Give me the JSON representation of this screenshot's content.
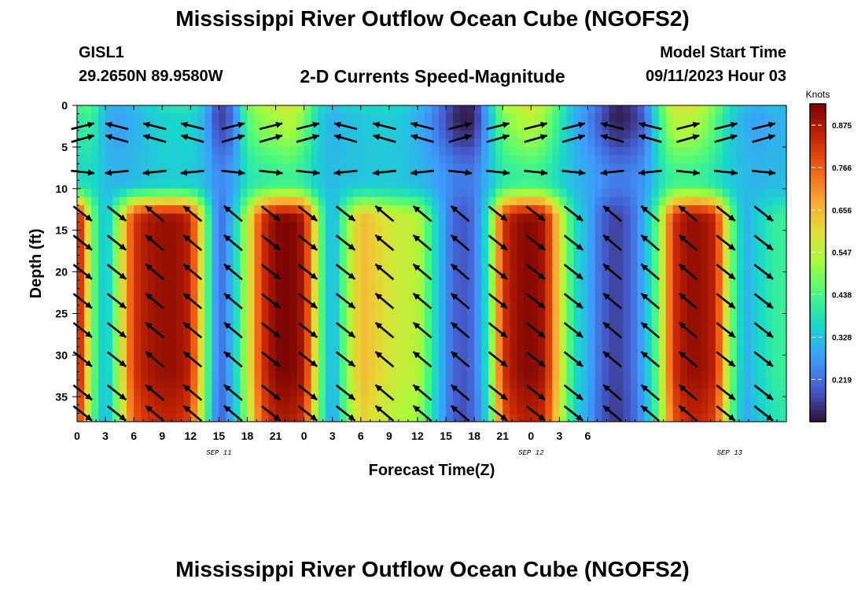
{
  "header": {
    "title": "Mississippi River Outflow Ocean Cube (NGOFS2)",
    "station": "GISL1",
    "coords": "29.2650N  89.9580W",
    "subtitle": "2-D Currents Speed-Magnitude",
    "start_label": "Model Start Time",
    "start_value": "09/11/2023 Hour 03"
  },
  "footer": {
    "title": "Mississippi River Outflow Ocean Cube (NGOFS2)"
  },
  "chart_data": {
    "type": "heatmap",
    "title": "2-D Currents Speed-Magnitude",
    "xlabel": "Forecast Time(Z)",
    "ylabel": "Depth (ft)",
    "x_range_hours": [
      0,
      75
    ],
    "y_range_ft": [
      0,
      38
    ],
    "y_inverted": true,
    "x_ticks": [
      "0",
      "3",
      "6",
      "9",
      "12",
      "15",
      "18",
      "21",
      "0",
      "3",
      "6",
      "9",
      "12",
      "15",
      "18",
      "21",
      "0",
      "3",
      "6"
    ],
    "y_ticks": [
      0,
      5,
      10,
      15,
      20,
      25,
      30,
      35
    ],
    "date_labels": [
      {
        "label": "SEP 11",
        "hour": 15
      },
      {
        "label": "SEP 12",
        "hour": 48
      },
      {
        "label": "SEP 13",
        "hour": 69
      }
    ],
    "colorbar": {
      "unit": "Knots",
      "ticks": [
        0.875,
        0.766,
        0.656,
        0.547,
        0.438,
        0.328,
        0.219
      ],
      "range": [
        0.11,
        0.93
      ]
    },
    "columns": [
      {
        "hour": 0,
        "deep": 0.92,
        "surf": 0.4
      },
      {
        "hour": 1.5,
        "deep": 0.5,
        "surf": 0.42
      },
      {
        "hour": 3,
        "deep": 0.3,
        "surf": 0.3
      },
      {
        "hour": 4.5,
        "deep": 0.55,
        "surf": 0.28
      },
      {
        "hour": 6,
        "deep": 0.82,
        "surf": 0.3
      },
      {
        "hour": 7.5,
        "deep": 0.88,
        "surf": 0.33
      },
      {
        "hour": 9,
        "deep": 0.9,
        "surf": 0.35
      },
      {
        "hour": 10.5,
        "deep": 0.9,
        "surf": 0.36
      },
      {
        "hour": 12,
        "deep": 0.85,
        "surf": 0.36
      },
      {
        "hour": 13.5,
        "deep": 0.5,
        "surf": 0.3
      },
      {
        "hour": 15,
        "deep": 0.2,
        "surf": 0.15
      },
      {
        "hour": 16.5,
        "deep": 0.32,
        "surf": 0.22
      },
      {
        "hour": 18,
        "deep": 0.55,
        "surf": 0.45
      },
      {
        "hour": 19.5,
        "deep": 0.82,
        "surf": 0.5
      },
      {
        "hour": 21,
        "deep": 0.92,
        "surf": 0.52
      },
      {
        "hour": 22.5,
        "deep": 0.93,
        "surf": 0.55
      },
      {
        "hour": 24,
        "deep": 0.88,
        "surf": 0.48
      },
      {
        "hour": 25.5,
        "deep": 0.5,
        "surf": 0.35
      },
      {
        "hour": 27,
        "deep": 0.28,
        "surf": 0.3
      },
      {
        "hour": 28.5,
        "deep": 0.5,
        "surf": 0.32
      },
      {
        "hour": 30,
        "deep": 0.66,
        "surf": 0.33
      },
      {
        "hour": 31.5,
        "deep": 0.62,
        "surf": 0.34
      },
      {
        "hour": 33,
        "deep": 0.58,
        "surf": 0.34
      },
      {
        "hour": 34.5,
        "deep": 0.56,
        "surf": 0.33
      },
      {
        "hour": 36,
        "deep": 0.55,
        "surf": 0.3
      },
      {
        "hour": 37.5,
        "deep": 0.4,
        "surf": 0.25
      },
      {
        "hour": 39,
        "deep": 0.26,
        "surf": 0.18
      },
      {
        "hour": 40.5,
        "deep": 0.18,
        "surf": 0.12
      },
      {
        "hour": 42,
        "deep": 0.22,
        "surf": 0.13
      },
      {
        "hour": 43.5,
        "deep": 0.4,
        "surf": 0.3
      },
      {
        "hour": 45,
        "deep": 0.82,
        "surf": 0.48
      },
      {
        "hour": 46.5,
        "deep": 0.9,
        "surf": 0.52
      },
      {
        "hour": 48,
        "deep": 0.92,
        "surf": 0.55
      },
      {
        "hour": 49.5,
        "deep": 0.88,
        "surf": 0.5
      },
      {
        "hour": 51,
        "deep": 0.6,
        "surf": 0.4
      },
      {
        "hour": 52.5,
        "deep": 0.38,
        "surf": 0.3
      },
      {
        "hour": 54,
        "deep": 0.3,
        "surf": 0.25
      },
      {
        "hour": 55.5,
        "deep": 0.2,
        "surf": 0.18
      },
      {
        "hour": 57,
        "deep": 0.16,
        "surf": 0.12
      },
      {
        "hour": 58.5,
        "deep": 0.2,
        "surf": 0.14
      },
      {
        "hour": 60,
        "deep": 0.3,
        "surf": 0.2
      },
      {
        "hour": 61.5,
        "deep": 0.48,
        "surf": 0.4
      },
      {
        "hour": 63,
        "deep": 0.82,
        "surf": 0.55
      },
      {
        "hour": 64.5,
        "deep": 0.9,
        "surf": 0.55
      },
      {
        "hour": 66,
        "deep": 0.9,
        "surf": 0.52
      },
      {
        "hour": 67.5,
        "deep": 0.85,
        "surf": 0.45
      },
      {
        "hour": 69,
        "deep": 0.5,
        "surf": 0.35
      },
      {
        "hour": 70.5,
        "deep": 0.3,
        "surf": 0.3
      },
      {
        "hour": 72,
        "deep": 0.35,
        "surf": 0.28
      },
      {
        "hour": 73.5,
        "deep": 0.4,
        "surf": 0.3
      },
      {
        "hour": 75,
        "deep": 0.42,
        "surf": 0.3
      }
    ],
    "vector_columns": [
      {
        "hour": 0.6,
        "deep": "down",
        "surf": "right"
      },
      {
        "hour": 4.2,
        "deep": "down",
        "surf": "left"
      },
      {
        "hour": 8.2,
        "deep": "up",
        "surf": "left"
      },
      {
        "hour": 12.2,
        "deep": "up",
        "surf": "left"
      },
      {
        "hour": 16.5,
        "deep": "up",
        "surf": "right"
      },
      {
        "hour": 20.5,
        "deep": "down",
        "surf": "right"
      },
      {
        "hour": 24.4,
        "deep": "down",
        "surf": "right"
      },
      {
        "hour": 28.4,
        "deep": "down",
        "surf": "left"
      },
      {
        "hour": 32.5,
        "deep": "up",
        "surf": "left"
      },
      {
        "hour": 36.5,
        "deep": "up",
        "surf": "left"
      },
      {
        "hour": 40.5,
        "deep": "up",
        "surf": "right"
      },
      {
        "hour": 44.5,
        "deep": "down",
        "surf": "right"
      },
      {
        "hour": 48.5,
        "deep": "down",
        "surf": "right"
      },
      {
        "hour": 52.5,
        "deep": "down",
        "surf": "right"
      },
      {
        "hour": 56.6,
        "deep": "up",
        "surf": "left"
      },
      {
        "hour": 60.6,
        "deep": "up",
        "surf": "left"
      },
      {
        "hour": 64.6,
        "deep": "up",
        "surf": "right"
      },
      {
        "hour": 68.6,
        "deep": "down",
        "surf": "right"
      },
      {
        "hour": 72.6,
        "deep": "down",
        "surf": "right"
      }
    ],
    "vector_depths_ft": [
      2.5,
      4,
      8,
      13,
      16.5,
      20,
      23.5,
      27,
      30.5,
      34.5,
      37
    ]
  }
}
